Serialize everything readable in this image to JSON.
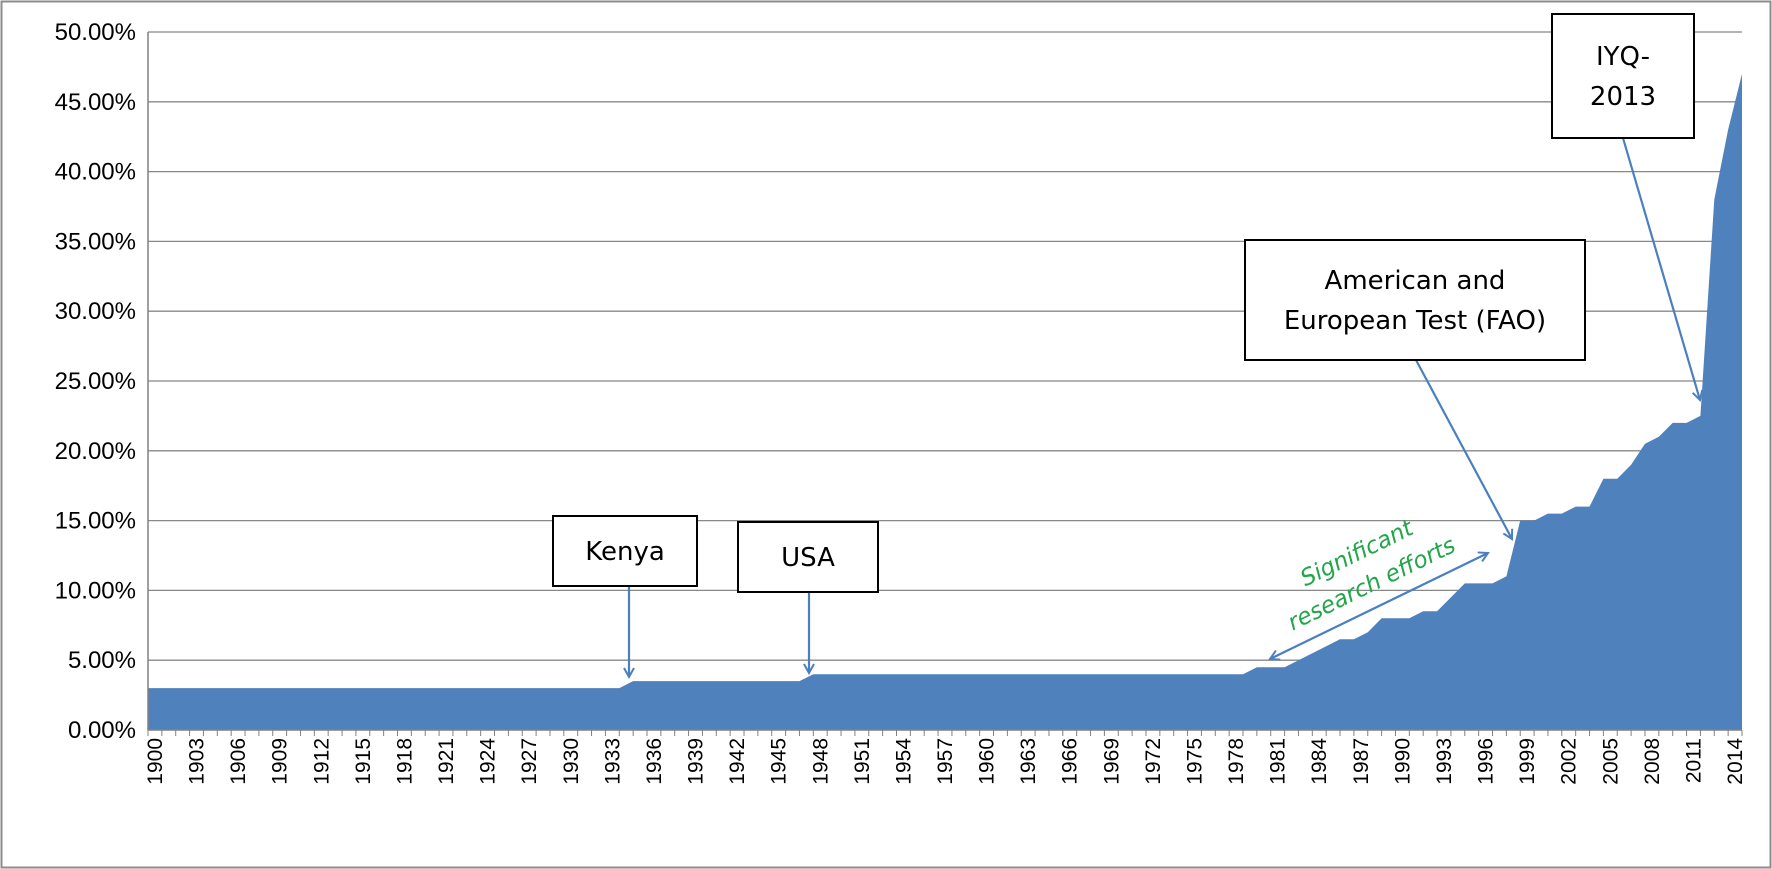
{
  "chart_data": {
    "type": "area",
    "title": "",
    "xlabel": "",
    "ylabel": "",
    "ylim": [
      0,
      0.5
    ],
    "yticks": [
      "0.00%",
      "5.00%",
      "10.00%",
      "15.00%",
      "20.00%",
      "25.00%",
      "30.00%",
      "35.00%",
      "40.00%",
      "45.00%",
      "50.00%"
    ],
    "x_tick_labels": [
      "1900",
      "1903",
      "1906",
      "1909",
      "1912",
      "1915",
      "1918",
      "1921",
      "1924",
      "1927",
      "1930",
      "1933",
      "1936",
      "1939",
      "1942",
      "1945",
      "1948",
      "1951",
      "1954",
      "1957",
      "1960",
      "1963",
      "1966",
      "1969",
      "1972",
      "1975",
      "1978",
      "1981",
      "1984",
      "1987",
      "1990",
      "1993",
      "1996",
      "1999",
      "2002",
      "2005",
      "2008",
      "2011",
      "2014"
    ],
    "grid": true,
    "color": "#4f81bd",
    "x": [
      1900,
      1934,
      1935,
      1947,
      1948,
      1979,
      1980,
      1981,
      1982,
      1983,
      1984,
      1985,
      1986,
      1987,
      1988,
      1989,
      1990,
      1991,
      1992,
      1993,
      1994,
      1995,
      1996,
      1997,
      1998,
      1999,
      2000,
      2001,
      2002,
      2003,
      2004,
      2005,
      2006,
      2007,
      2008,
      2009,
      2010,
      2011,
      2012,
      2013,
      2014,
      2015
    ],
    "values": [
      0.03,
      0.03,
      0.035,
      0.035,
      0.04,
      0.04,
      0.045,
      0.045,
      0.045,
      0.05,
      0.055,
      0.06,
      0.065,
      0.065,
      0.07,
      0.08,
      0.08,
      0.08,
      0.085,
      0.085,
      0.095,
      0.105,
      0.105,
      0.105,
      0.11,
      0.15,
      0.15,
      0.155,
      0.155,
      0.16,
      0.16,
      0.18,
      0.18,
      0.19,
      0.205,
      0.21,
      0.22,
      0.22,
      0.225,
      0.38,
      0.43,
      0.47
    ],
    "annotations": [
      {
        "id": "kenya",
        "text": [
          "Kenya"
        ],
        "target_x": 1935,
        "target_y": 0.035
      },
      {
        "id": "usa",
        "text": [
          "USA"
        ],
        "target_x": 1948,
        "target_y": 0.04
      },
      {
        "id": "fao",
        "text": [
          "American and",
          "European Test (FAO)"
        ],
        "target_x": 1999,
        "target_y": 0.14
      },
      {
        "id": "iyq",
        "text": [
          "IYQ-",
          "2013"
        ],
        "target_x": 2012,
        "target_y": 0.235
      }
    ],
    "note": {
      "lines": [
        "Significant",
        "research  efforts"
      ],
      "from": [
        1980,
        0.045
      ],
      "to": [
        1999,
        0.128
      ]
    }
  }
}
